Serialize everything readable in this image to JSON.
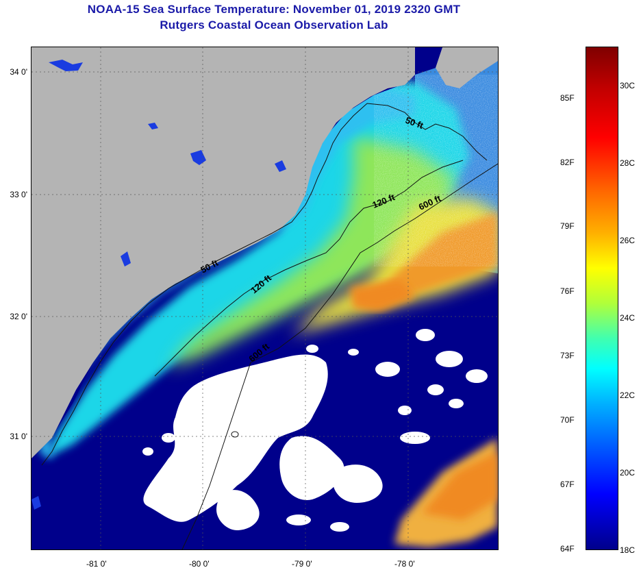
{
  "title": "NOAA-15 Sea Surface Temperature:  November 01, 2019 2320 GMT",
  "subtitle": "Rutgers Coastal Ocean Observation Lab",
  "map": {
    "lat_ticks": [
      {
        "label": "34 0'",
        "value": 34.0
      },
      {
        "label": "33 0'",
        "value": 33.0
      },
      {
        "label": "32 0'",
        "value": 32.0
      },
      {
        "label": "31 0'",
        "value": 31.0
      }
    ],
    "lon_ticks": [
      {
        "label": "-81 0'",
        "value": -81.0
      },
      {
        "label": "-80 0'",
        "value": -80.0
      },
      {
        "label": "-79 0'",
        "value": -79.0
      },
      {
        "label": "-78 0'",
        "value": -78.0
      }
    ],
    "contours": [
      {
        "label": "50 ft"
      },
      {
        "label": "120 ft"
      },
      {
        "label": "600 ft"
      },
      {
        "label": "50 ft"
      },
      {
        "label": "120 ft"
      },
      {
        "label": "600 ft"
      }
    ],
    "colors": {
      "land": "#b4b4b4",
      "deep_water": "#00008b",
      "clouds": "#ffffff",
      "shelf_near": "#19d3e6",
      "shelf_mid": "#7be36a",
      "gulf_stream": "#f0a028"
    }
  },
  "colorbar": {
    "fahrenheit": [
      "85F",
      "82F",
      "79F",
      "76F",
      "73F",
      "70F",
      "67F",
      "64F"
    ],
    "celsius": [
      "30C",
      "28C",
      "26C",
      "24C",
      "22C",
      "20C",
      "18C"
    ],
    "colors_top_to_bottom": [
      "#7f0000",
      "#ff0000",
      "#ffb000",
      "#ffff00",
      "#40ffb0",
      "#00ffff",
      "#0060ff",
      "#00008b"
    ]
  }
}
